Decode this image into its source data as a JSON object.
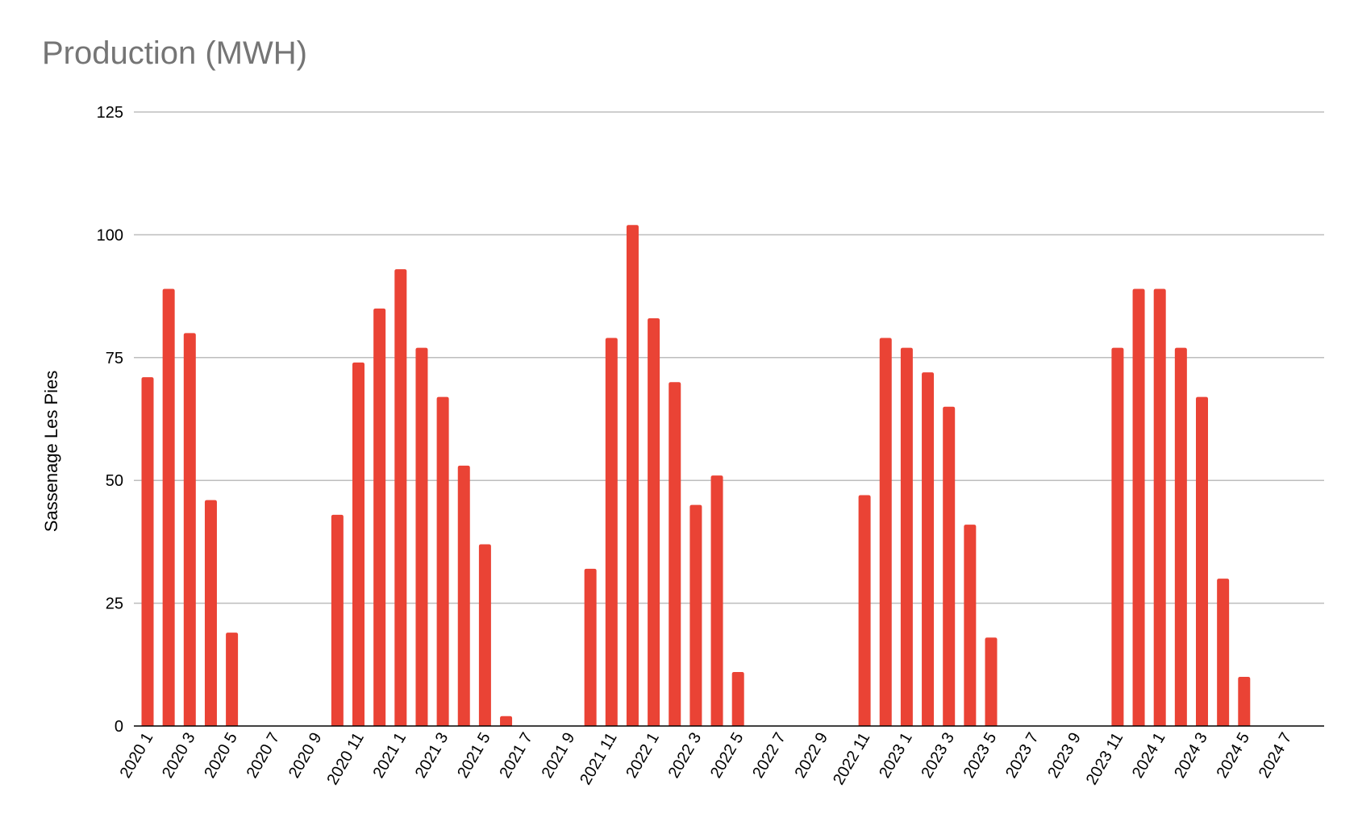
{
  "chart_data": {
    "type": "bar",
    "title": "Production (MWH)",
    "xlabel": "",
    "ylabel": "Sassenage Les Pies",
    "ylim": [
      0,
      125
    ],
    "yticks": [
      0,
      25,
      50,
      75,
      100,
      125
    ],
    "grid": true,
    "legend": "none",
    "colors": {
      "bar": "#EA4335",
      "grid": "#BDBDBD",
      "axis": "#000000",
      "title": "#757575"
    },
    "categories": [
      "2020 1",
      "2020 2",
      "2020 3",
      "2020 4",
      "2020 5",
      "2020 6",
      "2020 7",
      "2020 8",
      "2020 9",
      "2020 10",
      "2020 11",
      "2020 12",
      "2021 1",
      "2021 2",
      "2021 3",
      "2021 4",
      "2021 5",
      "2021 6",
      "2021 7",
      "2021 8",
      "2021 9",
      "2021 10",
      "2021 11",
      "2021 12",
      "2022 1",
      "2022 2",
      "2022 3",
      "2022 4",
      "2022 5",
      "2022 6",
      "2022 7",
      "2022 8",
      "2022 9",
      "2022 10",
      "2022 11",
      "2022 12",
      "2023 1",
      "2023 2",
      "2023 3",
      "2023 4",
      "2023 5",
      "2023 6",
      "2023 7",
      "2023 8",
      "2023 9",
      "2023 10",
      "2023 11",
      "2023 12",
      "2024 1",
      "2024 2",
      "2024 3",
      "2024 4",
      "2024 5",
      "2024 6",
      "2024 7",
      "2024 8"
    ],
    "values": [
      71,
      89,
      80,
      46,
      19,
      0,
      0,
      0,
      0,
      43,
      74,
      85,
      93,
      77,
      67,
      53,
      37,
      2,
      0,
      0,
      0,
      32,
      79,
      102,
      83,
      70,
      45,
      51,
      11,
      0,
      0,
      0,
      0,
      0,
      47,
      79,
      77,
      72,
      65,
      41,
      18,
      0,
      0,
      0,
      0,
      0,
      77,
      89,
      89,
      77,
      67,
      30,
      10,
      0,
      0,
      0
    ],
    "xtick_labels": [
      "2020 1",
      "2020 3",
      "2020 5",
      "2020 7",
      "2020 9",
      "2020 11",
      "2021 1",
      "2021 3",
      "2021 5",
      "2021 7",
      "2021 9",
      "2021 11",
      "2022 1",
      "2022 3",
      "2022 5",
      "2022 7",
      "2022 9",
      "2022 11",
      "2023 1",
      "2023 3",
      "2023 5",
      "2023 7",
      "2023 9",
      "2023 11",
      "2024 1",
      "2024 3",
      "2024 5",
      "2024 7"
    ]
  }
}
